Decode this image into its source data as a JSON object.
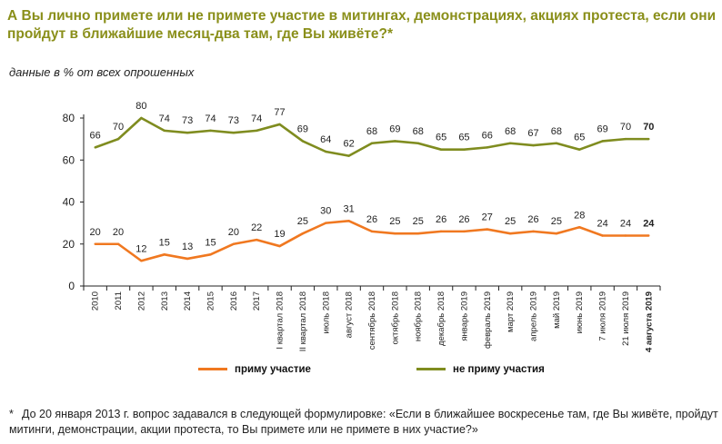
{
  "title": "А Вы лично примете или не примете участие в митингах, демонстрациях, акциях протеста, если они пройдут в ближайшие месяц-два там, где Вы живёте?*",
  "subtitle": "данные в % от всех опрошенных",
  "footnote": {
    "marker": "*",
    "text": "До 20 января 2013 г. вопрос задавался в следующей формулировке: «Если в ближайшее воскресенье там, где Вы живёте, пройдут митинги, демонстрации, акции протеста, то Вы примете или не примете в них участие?»"
  },
  "chart_data": {
    "type": "line",
    "categories": [
      "2010",
      "2011",
      "2012",
      "2013",
      "2014",
      "2015",
      "2016",
      "2017",
      "I квартал 2018",
      "II квартал 2018",
      "июль 2018",
      "август 2018",
      "сентябрь 2018",
      "октябрь 2018",
      "ноябрь 2018",
      "декабрь 2018",
      "январь 2019",
      "февраль 2019",
      "март 2019",
      "апрель 2019",
      "май 2019",
      "июнь 2019",
      "7 июля 2019",
      "21 июля 2019",
      "4 августа 2019"
    ],
    "series": [
      {
        "name": "приму участие",
        "color": "#f07820",
        "values": [
          20,
          20,
          12,
          15,
          13,
          15,
          20,
          22,
          19,
          25,
          30,
          31,
          26,
          25,
          25,
          26,
          26,
          27,
          25,
          26,
          25,
          28,
          24,
          24,
          24
        ]
      },
      {
        "name": "не приму участия",
        "color": "#7f8c1f",
        "values": [
          66,
          70,
          80,
          74,
          73,
          74,
          73,
          74,
          77,
          69,
          64,
          62,
          68,
          69,
          68,
          65,
          65,
          66,
          68,
          67,
          68,
          65,
          69,
          70,
          70
        ]
      }
    ],
    "ylim": [
      0,
      80
    ],
    "yticks": [
      0,
      20,
      40,
      60,
      80
    ],
    "grid": false,
    "legend": "bottom"
  }
}
